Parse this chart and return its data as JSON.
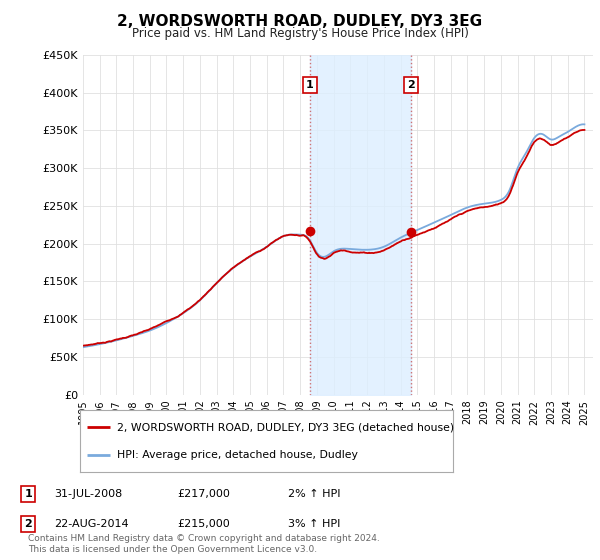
{
  "title": "2, WORDSWORTH ROAD, DUDLEY, DY3 3EG",
  "subtitle": "Price paid vs. HM Land Registry's House Price Index (HPI)",
  "ylim": [
    0,
    450000
  ],
  "xlim_start": 1995,
  "xlim_end": 2025.5,
  "hpi_color": "#7aaadd",
  "price_color": "#cc0000",
  "shade_color": "#ddeeff",
  "vline_color": "#cc6666",
  "marker1_date": 2008.58,
  "marker1_price": 217000,
  "marker2_date": 2014.64,
  "marker2_price": 215000,
  "legend1": "2, WORDSWORTH ROAD, DUDLEY, DY3 3EG (detached house)",
  "legend2": "HPI: Average price, detached house, Dudley",
  "table_row1_num": "1",
  "table_row1_date": "31-JUL-2008",
  "table_row1_price": "£217,000",
  "table_row1_hpi": "2% ↑ HPI",
  "table_row2_num": "2",
  "table_row2_date": "22-AUG-2014",
  "table_row2_price": "£215,000",
  "table_row2_hpi": "3% ↑ HPI",
  "footer": "Contains HM Land Registry data © Crown copyright and database right 2024.\nThis data is licensed under the Open Government Licence v3.0.",
  "background_color": "#ffffff",
  "ytick_vals": [
    0,
    50000,
    100000,
    150000,
    200000,
    250000,
    300000,
    350000,
    400000,
    450000
  ],
  "ytick_labels": [
    "£0",
    "£50K",
    "£100K",
    "£150K",
    "£200K",
    "£250K",
    "£300K",
    "£350K",
    "£400K",
    "£450K"
  ]
}
